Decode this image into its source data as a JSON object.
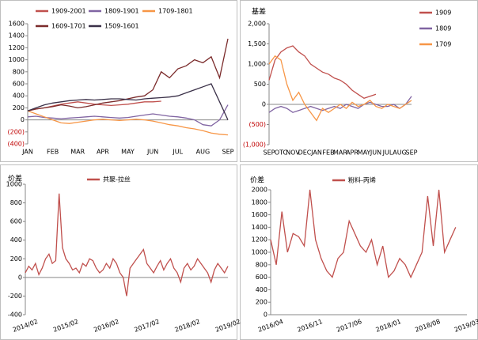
{
  "chart_data": [
    {
      "type": "line",
      "legend": "top",
      "categories": [
        "JAN",
        null,
        null,
        "FEB",
        null,
        null,
        "MAR",
        null,
        null,
        "APR",
        null,
        null,
        "MAY",
        null,
        null,
        "JUN",
        null,
        null,
        "JUL",
        null,
        null,
        "AUG",
        null,
        null,
        "SEP"
      ],
      "ylim": [
        -400,
        1600
      ],
      "yticks": [
        1600,
        1400,
        1200,
        1000,
        800,
        600,
        400,
        200,
        0,
        {
          "value": -200,
          "label": "(200)"
        },
        {
          "value": -400,
          "label": "(400)"
        }
      ],
      "negative_tick_color": "#c00000",
      "series": [
        {
          "name": "1909-2001",
          "color": "#c0504d",
          "values": [
            150,
            180,
            200,
            230,
            260,
            280,
            300,
            280,
            260,
            250,
            240,
            250,
            260,
            280,
            300,
            300,
            310,
            null,
            null,
            null,
            null,
            null,
            null,
            null,
            null
          ]
        },
        {
          "name": "1809-1901",
          "color": "#8064a2",
          "values": [
            50,
            60,
            40,
            30,
            20,
            30,
            40,
            50,
            60,
            50,
            40,
            30,
            40,
            60,
            80,
            100,
            80,
            60,
            50,
            30,
            0,
            -80,
            -100,
            0,
            250
          ]
        },
        {
          "name": "1709-1801",
          "color": "#f79646",
          "values": [
            150,
            100,
            50,
            0,
            -50,
            -60,
            -40,
            -20,
            0,
            10,
            0,
            -10,
            0,
            10,
            0,
            -20,
            -50,
            -80,
            -100,
            -130,
            -150,
            -180,
            -220,
            -240,
            -250
          ]
        },
        {
          "name": "1609-1701",
          "color": "#7b2b2b",
          "values": [
            150,
            180,
            200,
            220,
            250,
            230,
            200,
            220,
            250,
            280,
            300,
            320,
            350,
            380,
            400,
            500,
            800,
            700,
            850,
            900,
            1000,
            950,
            1050,
            700,
            1350
          ]
        },
        {
          "name": "1509-1601",
          "color": "#3a3048",
          "values": [
            150,
            200,
            250,
            280,
            300,
            320,
            330,
            340,
            330,
            340,
            350,
            350,
            340,
            330,
            350,
            360,
            370,
            380,
            400,
            450,
            500,
            550,
            600,
            300,
            0
          ]
        }
      ]
    },
    {
      "type": "line",
      "legend": "right",
      "y_label": "基差",
      "categories": [
        "SEP",
        null,
        "OTC",
        null,
        "NOV",
        null,
        "DEC",
        null,
        "JAN",
        null,
        "FEB",
        null,
        "MAR",
        null,
        "APR",
        null,
        "MAY",
        null,
        "JUN",
        null,
        "JUL",
        null,
        "AUG",
        null,
        "SEP"
      ],
      "ylim": [
        -1000,
        2000
      ],
      "yticks": [
        {
          "value": 2000,
          "label": "2,000"
        },
        {
          "value": 1500,
          "label": "1,500"
        },
        {
          "value": 1000,
          "label": "1,000"
        },
        500,
        0,
        {
          "value": -500,
          "label": "(500)"
        },
        {
          "value": -1000,
          "label": "(1,000)"
        }
      ],
      "negative_tick_color": "#c00000",
      "series": [
        {
          "name": "1909",
          "color": "#c0504d",
          "values": [
            600,
            1100,
            1300,
            1400,
            1450,
            1300,
            1200,
            1000,
            900,
            800,
            750,
            650,
            600,
            500,
            350,
            250,
            150,
            200,
            250,
            null,
            null,
            null,
            null,
            null,
            null
          ]
        },
        {
          "name": "1809",
          "color": "#8064a2",
          "values": [
            -200,
            -100,
            -50,
            -100,
            -200,
            -150,
            -100,
            -50,
            -100,
            -150,
            -100,
            -50,
            -100,
            0,
            -50,
            -100,
            0,
            50,
            0,
            -50,
            -50,
            0,
            -100,
            0,
            200
          ]
        },
        {
          "name": "1709",
          "color": "#f79646",
          "values": [
            1000,
            1200,
            1100,
            500,
            100,
            300,
            0,
            -200,
            -400,
            -100,
            -200,
            -100,
            0,
            -100,
            50,
            -50,
            0,
            100,
            -50,
            -100,
            0,
            -50,
            -100,
            0,
            100
          ]
        }
      ]
    },
    {
      "type": "line",
      "legend": "top",
      "y_label": "价差",
      "categories": [
        "2014/02",
        null,
        null,
        null,
        null,
        null,
        null,
        null,
        null,
        null,
        null,
        null,
        "2015/02",
        null,
        null,
        null,
        null,
        null,
        null,
        null,
        null,
        null,
        null,
        null,
        "2016/02",
        null,
        null,
        null,
        null,
        null,
        null,
        null,
        null,
        null,
        null,
        null,
        "2017/02",
        null,
        null,
        null,
        null,
        null,
        null,
        null,
        null,
        null,
        null,
        null,
        "2018/02",
        null,
        null,
        null,
        null,
        null,
        null,
        null,
        null,
        null,
        null,
        null,
        "2019/02"
      ],
      "ylim": [
        -400,
        1000
      ],
      "yticks": [
        1000,
        800,
        600,
        400,
        200,
        0,
        -200,
        -400
      ],
      "series": [
        {
          "name": "共聚-拉丝",
          "color": "#c0504d",
          "values": [
            50,
            120,
            80,
            150,
            30,
            100,
            200,
            250,
            150,
            180,
            900,
            320,
            200,
            150,
            80,
            100,
            50,
            150,
            120,
            200,
            180,
            100,
            50,
            80,
            150,
            100,
            200,
            150,
            50,
            0,
            -200,
            100,
            150,
            200,
            250,
            300,
            150,
            100,
            50,
            120,
            180,
            80,
            150,
            200,
            100,
            50,
            -50,
            100,
            150,
            80,
            120,
            200,
            150,
            100,
            50,
            -50,
            80,
            150,
            100,
            50,
            120
          ]
        }
      ]
    },
    {
      "type": "line",
      "legend": "top",
      "y_label": "价差",
      "categories": [
        "2016/04",
        null,
        null,
        null,
        null,
        null,
        null,
        "2016/11",
        null,
        null,
        null,
        null,
        null,
        null,
        "2017/06",
        null,
        null,
        null,
        null,
        null,
        null,
        "2018/01",
        null,
        null,
        null,
        null,
        null,
        null,
        "2018/08",
        null,
        null,
        null,
        null,
        null,
        null,
        "2019/03"
      ],
      "ylim": [
        0,
        2000
      ],
      "yticks": [
        2000,
        1800,
        1600,
        1400,
        1200,
        1000,
        800,
        600,
        400,
        200,
        0
      ],
      "series": [
        {
          "name": "粉料-丙烯",
          "color": "#c0504d",
          "values": [
            1200,
            800,
            1650,
            1000,
            1300,
            1250,
            1100,
            2000,
            1200,
            900,
            700,
            600,
            900,
            1000,
            1500,
            1300,
            1100,
            1000,
            1200,
            800,
            1100,
            600,
            700,
            900,
            800,
            600,
            800,
            1000,
            1900,
            1100,
            2000,
            1000,
            1200,
            1400,
            null,
            null
          ]
        }
      ]
    }
  ]
}
